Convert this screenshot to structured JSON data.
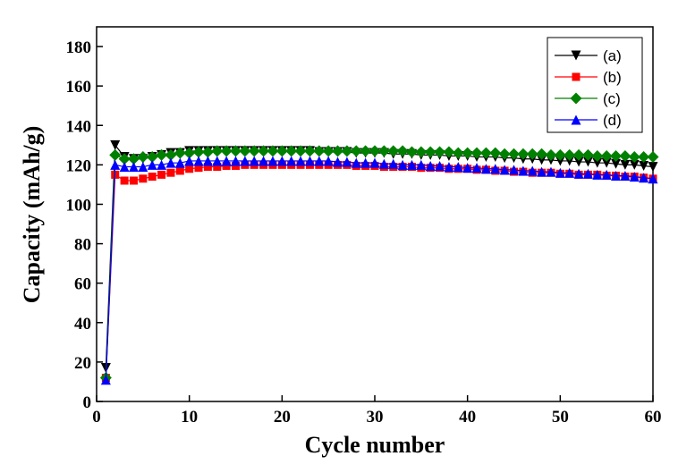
{
  "chart_data": {
    "type": "line",
    "xlabel": "Cycle number",
    "ylabel": "Capacity (mAh/g)",
    "xlim": [
      0,
      60
    ],
    "ylim": [
      0,
      190
    ],
    "xticks": [
      0,
      10,
      20,
      30,
      40,
      50,
      60
    ],
    "yticks": [
      0,
      20,
      40,
      60,
      80,
      100,
      120,
      140,
      160,
      180
    ],
    "legend": "upper-right",
    "x": [
      1,
      2,
      3,
      4,
      5,
      6,
      7,
      8,
      9,
      10,
      11,
      12,
      13,
      14,
      15,
      16,
      17,
      18,
      19,
      20,
      21,
      22,
      23,
      24,
      25,
      26,
      27,
      28,
      29,
      30,
      31,
      32,
      33,
      34,
      35,
      36,
      37,
      38,
      39,
      40,
      41,
      42,
      43,
      44,
      45,
      46,
      47,
      48,
      49,
      50,
      51,
      52,
      53,
      54,
      55,
      56,
      57,
      58,
      59,
      60
    ],
    "series": [
      {
        "name": "(a)",
        "color": "#000000",
        "marker": "triangle-down",
        "values": [
          17,
          130,
          124,
          123,
          123,
          124,
          125,
          126,
          126,
          127,
          127,
          127,
          127,
          127,
          127,
          127,
          127,
          127,
          127,
          127,
          127,
          127,
          127,
          126.5,
          126.5,
          126.5,
          126.5,
          126,
          126,
          126,
          126,
          125.5,
          125.5,
          125.5,
          125,
          125,
          125,
          124.5,
          124.5,
          124.5,
          124,
          124,
          124,
          123.5,
          123.5,
          123,
          123,
          122.5,
          122.5,
          122,
          122,
          121.5,
          121.5,
          121,
          121,
          120.5,
          120,
          120,
          119.5,
          119
        ]
      },
      {
        "name": "(b)",
        "color": "#ff0000",
        "marker": "square",
        "values": [
          12,
          115,
          112,
          112,
          113,
          114,
          115,
          116,
          117,
          118,
          118.5,
          119,
          119,
          119.5,
          119.5,
          120,
          120,
          120,
          120,
          120,
          120,
          120,
          120,
          120,
          120,
          120,
          120,
          119.5,
          119.5,
          119.5,
          119,
          119,
          119,
          119,
          118.5,
          118.5,
          118.5,
          118,
          118,
          118,
          117.5,
          117.5,
          117,
          117,
          116.5,
          116.5,
          116,
          116,
          116,
          115.5,
          115.5,
          115,
          115,
          115,
          114.5,
          114.5,
          114,
          114,
          113.5,
          113
        ]
      },
      {
        "name": "(c)",
        "color": "#008000",
        "marker": "diamond",
        "values": [
          12,
          125,
          123,
          123,
          124,
          124,
          125,
          125,
          126,
          126,
          126.5,
          126.5,
          127,
          127,
          127,
          127,
          127,
          127,
          127,
          127,
          127,
          127,
          127,
          127,
          127,
          127,
          127,
          127,
          127,
          127,
          127,
          127,
          127,
          126.5,
          126.5,
          126.5,
          126.5,
          126.5,
          126,
          126,
          126,
          126,
          126,
          125.5,
          125.5,
          125.5,
          125.5,
          125.5,
          125,
          125,
          125,
          125,
          125,
          124.5,
          124.5,
          124.5,
          124.5,
          124,
          124,
          124
        ]
      },
      {
        "name": "(d)",
        "color": "#0000ff",
        "marker": "triangle-up",
        "values": [
          11,
          120,
          119,
          119,
          119,
          120,
          120,
          121,
          121,
          122,
          122,
          122,
          122,
          122,
          122,
          122,
          122,
          122,
          122,
          122,
          122,
          122,
          122,
          122,
          122,
          121.5,
          121.5,
          121,
          121,
          121,
          120.5,
          120.5,
          120,
          120,
          120,
          119.5,
          119.5,
          119,
          119,
          118.5,
          118.5,
          118,
          118,
          117.5,
          117.5,
          117,
          117,
          116.5,
          116.5,
          116,
          116,
          115.5,
          115.5,
          115,
          115,
          114.5,
          114.5,
          114,
          113.5,
          113
        ]
      }
    ]
  }
}
